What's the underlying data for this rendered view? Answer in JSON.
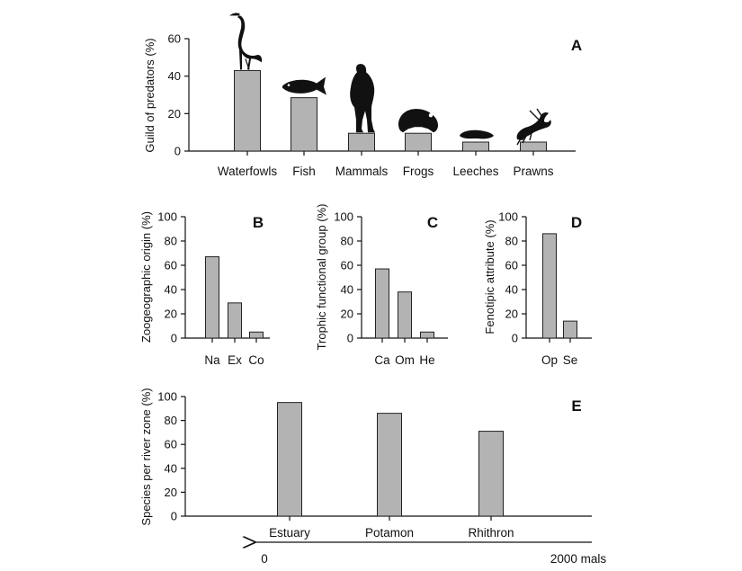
{
  "chart_data": [
    {
      "id": "A",
      "type": "bar",
      "panel_letter": "A",
      "ylabel": "Guild of predators (%)",
      "ylim": [
        0,
        60
      ],
      "yticks": [
        0,
        20,
        40,
        60
      ],
      "categories": [
        "Waterfowls",
        "Fish",
        "Mammals",
        "Frogs",
        "Leeches",
        "Prawns"
      ],
      "values": [
        43,
        28.5,
        9.5,
        9.5,
        4.8,
        4.8
      ],
      "icons": [
        "heron-icon",
        "fish-icon",
        "mammal-icon",
        "frog-icon",
        "leech-icon",
        "prawn-icon"
      ]
    },
    {
      "id": "B",
      "type": "bar",
      "panel_letter": "B",
      "ylabel": "Zoogeographic origin (%)",
      "ylim": [
        0,
        100
      ],
      "yticks": [
        0,
        20,
        40,
        60,
        80,
        100
      ],
      "categories": [
        "Na",
        "Ex",
        "Co"
      ],
      "values": [
        67,
        29,
        5
      ]
    },
    {
      "id": "C",
      "type": "bar",
      "panel_letter": "C",
      "ylabel": "Trophic functional group (%)",
      "ylim": [
        0,
        100
      ],
      "yticks": [
        0,
        20,
        40,
        60,
        80,
        100
      ],
      "categories": [
        "Ca",
        "Om",
        "He"
      ],
      "values": [
        57,
        38,
        5
      ]
    },
    {
      "id": "D",
      "type": "bar",
      "panel_letter": "D",
      "ylabel": "Fenotipic attribute (%)",
      "ylim": [
        0,
        100
      ],
      "yticks": [
        0,
        20,
        40,
        60,
        80,
        100
      ],
      "categories": [
        "Op",
        "Se"
      ],
      "values": [
        86,
        14
      ]
    },
    {
      "id": "E",
      "type": "bar",
      "panel_letter": "E",
      "ylabel": "Species per river zone (%)",
      "ylim": [
        0,
        100
      ],
      "yticks": [
        0,
        20,
        40,
        60,
        80,
        100
      ],
      "categories": [
        "Estuary",
        "Potamon",
        "Rhithron"
      ],
      "values": [
        95,
        86,
        71
      ],
      "arrow_labels": {
        "start": "0",
        "end": "2000 mals"
      }
    }
  ]
}
